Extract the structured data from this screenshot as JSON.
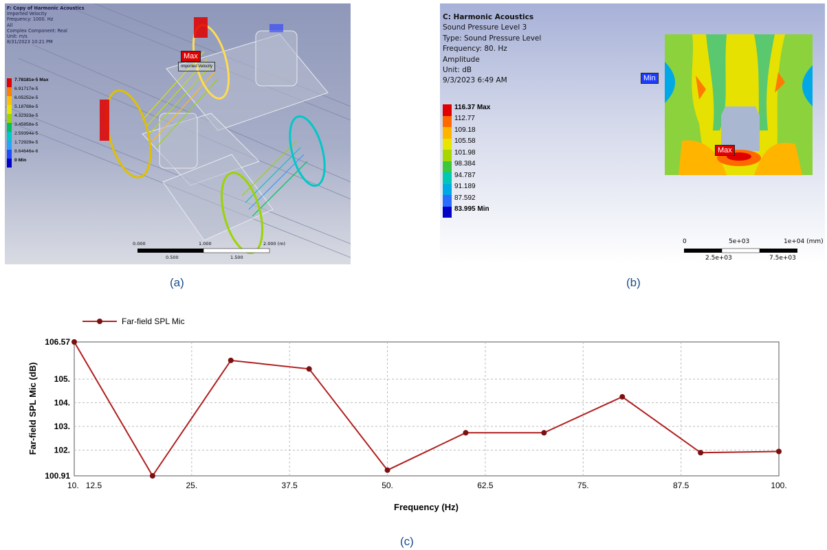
{
  "panel_a": {
    "caption": "(a)",
    "meta": [
      "F: Copy of Harmonic Acoustics",
      "Imported Velocity",
      "Frequency: 1000. Hz",
      "All",
      "Complex Component: Real",
      "Unit: m/s",
      "8/31/2023 10:21 PM"
    ],
    "legend": [
      "7.78181e-5 Max",
      "6.91717e-5",
      "6.05252e-5",
      "5.18788e-5",
      "4.32323e-5",
      "3.45858e-5",
      "2.59394e-5",
      "1.72929e-5",
      "8.64646e-6",
      "0 Min"
    ],
    "legend_colors": [
      "#e00000",
      "#ff7f00",
      "#ffc000",
      "#e6e600",
      "#9bd400",
      "#00c060",
      "#00c8c8",
      "#2aa0ff",
      "#1c4cff",
      "#0000c8"
    ],
    "max_tag": "Max",
    "probe_label": "Imported Velocity",
    "scale": [
      "0.000",
      "1.000",
      "2.000 (m)",
      "0.500",
      "1.500"
    ]
  },
  "panel_b": {
    "caption": "(b)",
    "meta": [
      "C: Harmonic Acoustics",
      "Sound Pressure Level 3",
      "Type: Sound Pressure Level",
      "Frequency: 80. Hz",
      "Amplitude",
      "Unit: dB",
      "9/3/2023 6:49 AM"
    ],
    "legend": [
      "116.37 Max",
      "112.77",
      "109.18",
      "105.58",
      "101.98",
      "98.384",
      "94.787",
      "91.189",
      "87.592",
      "83.995 Min"
    ],
    "legend_colors": [
      "#e00000",
      "#ff6a00",
      "#ffb400",
      "#e6e600",
      "#a8d600",
      "#3cc83c",
      "#00c8b4",
      "#00a8e6",
      "#2a6cff",
      "#0000c8"
    ],
    "min_tag": "Min",
    "max_tag": "Max",
    "scale": [
      "0",
      "5e+03",
      "1e+04 (mm)",
      "2.5e+03",
      "7.5e+03"
    ]
  },
  "chart_data": {
    "type": "line",
    "caption": "(c)",
    "title": "",
    "xlabel": "Frequency (Hz)",
    "ylabel": "Far-field SPL Mic (dB)",
    "xlim": [
      10,
      100
    ],
    "ylim": [
      100.91,
      106.57
    ],
    "x_ticks": [
      "10.",
      "12.5",
      "25.",
      "37.5",
      "50.",
      "62.5",
      "75.",
      "87.5",
      "100."
    ],
    "x_tick_values": [
      10,
      12.5,
      25,
      37.5,
      50,
      62.5,
      75,
      87.5,
      100
    ],
    "y_ticks": [
      "106.57",
      "105.",
      "104.",
      "103.",
      "102.",
      "100.91"
    ],
    "y_tick_values": [
      106.57,
      105,
      104,
      103,
      102,
      100.91
    ],
    "grid": true,
    "legend_position": "top-left",
    "series": [
      {
        "name": "Far-field SPL Mic",
        "color": "#b01e1e",
        "x": [
          10,
          20,
          30,
          40,
          50,
          60,
          70,
          80,
          90,
          100
        ],
        "y": [
          106.57,
          100.91,
          105.79,
          105.43,
          101.15,
          102.73,
          102.73,
          104.25,
          101.89,
          101.94
        ]
      }
    ]
  }
}
